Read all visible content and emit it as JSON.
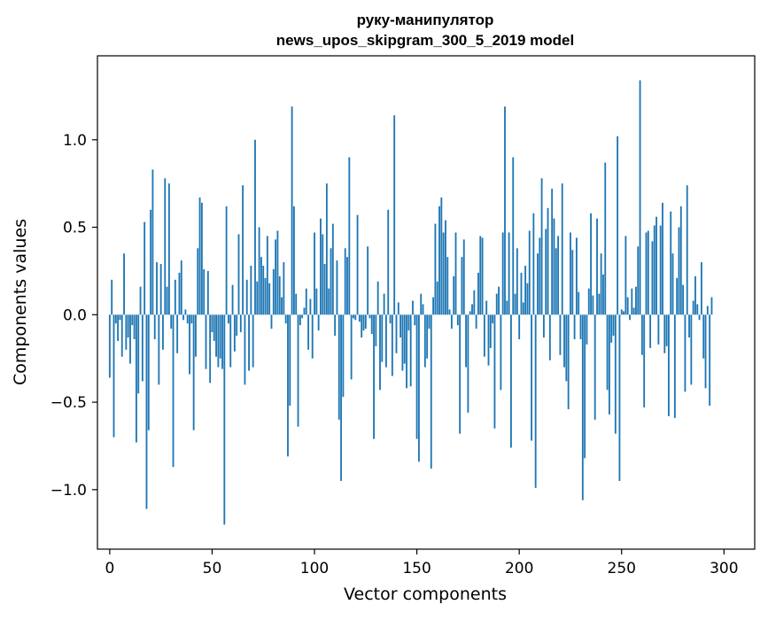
{
  "chart_data": {
    "type": "bar",
    "title": "руку-манипулятор",
    "subtitle": "news_upos_skipgram_300_5_2019 model",
    "xlabel": "Vector components",
    "ylabel": "Components values",
    "xlim": [
      -6,
      315
    ],
    "ylim": [
      -1.34,
      1.48
    ],
    "x_ticks": [
      0,
      50,
      100,
      150,
      200,
      250,
      300
    ],
    "x_tick_labels": [
      "0",
      "50",
      "100",
      "150",
      "200",
      "250",
      "300"
    ],
    "y_ticks": [
      -1.0,
      -0.5,
      0.0,
      0.5,
      1.0
    ],
    "y_tick_labels": [
      "−1.0",
      "−0.5",
      "0.0",
      "0.5",
      "1.0"
    ],
    "bar_color": "#1f77b4",
    "grid": false,
    "values": [
      -0.36,
      0.2,
      -0.7,
      -0.05,
      -0.15,
      -0.03,
      -0.24,
      0.35,
      -0.2,
      -0.13,
      -0.28,
      -0.06,
      -0.14,
      -0.73,
      -0.45,
      0.16,
      -0.38,
      0.53,
      -1.11,
      -0.66,
      0.6,
      0.83,
      -0.14,
      0.3,
      -0.4,
      0.29,
      -0.2,
      0.78,
      0.16,
      0.75,
      -0.08,
      -0.87,
      0.2,
      -0.22,
      0.24,
      0.31,
      -0.03,
      0.03,
      -0.05,
      -0.34,
      -0.05,
      -0.66,
      -0.24,
      0.38,
      0.67,
      0.64,
      0.26,
      -0.31,
      0.25,
      -0.39,
      -0.1,
      -0.15,
      -0.24,
      -0.3,
      -0.25,
      -0.31,
      -1.2,
      0.62,
      -0.05,
      -0.3,
      0.17,
      -0.21,
      -0.12,
      0.46,
      -0.1,
      0.74,
      -0.4,
      0.2,
      -0.32,
      0.28,
      -0.3,
      1.0,
      0.19,
      0.5,
      0.33,
      0.28,
      0.21,
      0.45,
      0.18,
      -0.08,
      0.26,
      0.43,
      0.48,
      0.22,
      0.1,
      0.3,
      -0.05,
      -0.81,
      -0.52,
      1.19,
      0.62,
      0.12,
      -0.64,
      -0.06,
      -0.02,
      0.04,
      0.15,
      -0.2,
      0.09,
      -0.25,
      0.47,
      0.15,
      -0.09,
      0.55,
      0.46,
      0.29,
      0.75,
      0.15,
      0.38,
      0.52,
      -0.12,
      0.31,
      -0.6,
      -0.95,
      -0.47,
      0.38,
      0.33,
      0.9,
      -0.37,
      -0.02,
      -0.03,
      0.57,
      -0.04,
      -0.13,
      -0.09,
      -0.08,
      0.39,
      -0.02,
      -0.11,
      -0.71,
      -0.18,
      0.19,
      -0.43,
      -0.27,
      0.12,
      -0.3,
      0.6,
      -0.05,
      -0.35,
      1.14,
      -0.22,
      0.07,
      -0.13,
      -0.32,
      -0.28,
      -0.42,
      -0.09,
      -0.41,
      0.08,
      -0.06,
      -0.71,
      -0.84,
      0.12,
      0.06,
      -0.3,
      -0.25,
      -0.08,
      -0.88,
      0.1,
      0.52,
      0.19,
      0.62,
      0.67,
      0.47,
      0.54,
      0.33,
      0.03,
      -0.08,
      0.22,
      0.47,
      -0.06,
      -0.68,
      0.33,
      0.43,
      -0.3,
      -0.56,
      0.02,
      0.06,
      0.14,
      -0.08,
      0.24,
      0.45,
      0.44,
      -0.24,
      0.08,
      -0.29,
      -0.19,
      -0.05,
      -0.65,
      0.12,
      0.16,
      -0.43,
      0.47,
      1.19,
      0.08,
      0.47,
      -0.76,
      0.9,
      0.12,
      0.38,
      -0.14,
      0.24,
      0.07,
      0.28,
      0.18,
      0.48,
      -0.72,
      0.58,
      -0.99,
      0.35,
      0.44,
      0.78,
      -0.13,
      0.49,
      0.61,
      -0.26,
      0.72,
      0.55,
      0.38,
      0.45,
      -0.23,
      0.75,
      -0.3,
      -0.38,
      -0.54,
      0.47,
      0.37,
      -0.14,
      0.44,
      0.13,
      -0.14,
      -1.06,
      -0.82,
      -0.17,
      0.15,
      0.58,
      0.11,
      -0.6,
      0.55,
      0.12,
      0.35,
      0.23,
      0.87,
      -0.43,
      -0.57,
      -0.16,
      -0.12,
      -0.68,
      1.02,
      -0.95,
      0.03,
      0.02,
      0.45,
      0.1,
      -0.03,
      0.15,
      0.04,
      0.16,
      0.39,
      1.34,
      -0.23,
      -0.53,
      0.47,
      0.48,
      -0.19,
      0.42,
      0.51,
      0.56,
      -0.17,
      0.51,
      0.64,
      -0.22,
      -0.18,
      -0.58,
      0.59,
      0.35,
      -0.59,
      0.21,
      0.5,
      0.62,
      0.17,
      -0.44,
      0.74,
      -0.13,
      -0.4,
      0.08,
      0.22,
      0.06,
      -0.03,
      0.3,
      -0.25,
      -0.42,
      0.05,
      -0.52,
      0.1
    ]
  }
}
